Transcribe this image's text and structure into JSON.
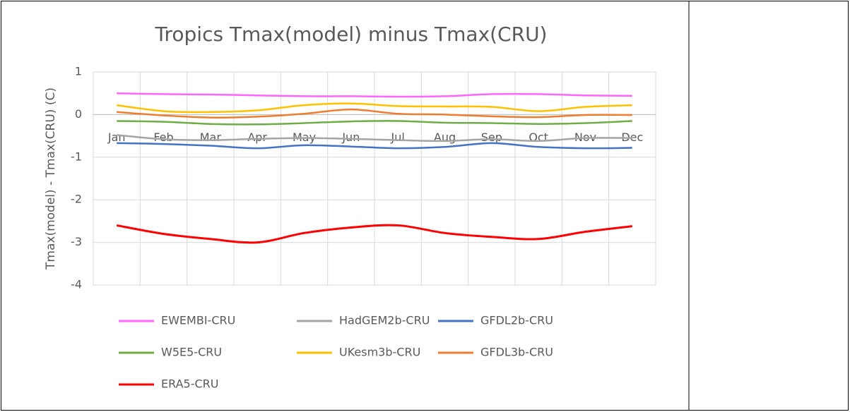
{
  "chart_data": {
    "type": "line",
    "title": "Tropics Tmax(model) minus Tmax(CRU)",
    "y_label": "Tmax(model) - Tmax(CRU) (C)",
    "categories": [
      "Jan",
      "Feb",
      "Mar",
      "Apr",
      "May",
      "Jun",
      "Jul",
      "Aug",
      "Sep",
      "Oct",
      "Nov",
      "Dec"
    ],
    "ylim": [
      -4,
      1
    ],
    "yticks": [
      -4,
      -3,
      -2,
      -1,
      0,
      1
    ],
    "grid": true,
    "smooth": true,
    "series": [
      {
        "name": "EWEMBI-CRU",
        "color": "#ff66ff",
        "values": [
          0.5,
          0.48,
          0.47,
          0.45,
          0.43,
          0.43,
          0.42,
          0.43,
          0.48,
          0.48,
          0.45,
          0.44
        ]
      },
      {
        "name": "HadGEM2b-CRU",
        "color": "#a5a5a5",
        "values": [
          -0.48,
          -0.58,
          -0.6,
          -0.57,
          -0.55,
          -0.57,
          -0.6,
          -0.62,
          -0.58,
          -0.62,
          -0.55,
          -0.55
        ]
      },
      {
        "name": "GFDL2b-CRU",
        "color": "#4472c4",
        "values": [
          -0.67,
          -0.69,
          -0.73,
          -0.79,
          -0.72,
          -0.75,
          -0.79,
          -0.76,
          -0.67,
          -0.76,
          -0.79,
          -0.78
        ]
      },
      {
        "name": "W5E5-CRU",
        "color": "#70ad47",
        "values": [
          -0.15,
          -0.17,
          -0.22,
          -0.23,
          -0.2,
          -0.16,
          -0.15,
          -0.19,
          -0.2,
          -0.22,
          -0.2,
          -0.15
        ]
      },
      {
        "name": "UKesm3b-CRU",
        "color": "#ffc000",
        "values": [
          0.22,
          0.08,
          0.06,
          0.1,
          0.22,
          0.26,
          0.2,
          0.19,
          0.18,
          0.08,
          0.18,
          0.22
        ]
      },
      {
        "name": "GFDL3b-CRU",
        "color": "#ed7d31",
        "values": [
          0.06,
          -0.02,
          -0.07,
          -0.05,
          0.02,
          0.12,
          0.02,
          0.0,
          -0.04,
          -0.06,
          -0.01,
          -0.01
        ]
      },
      {
        "name": "ERA5-CRU",
        "color": "#ff0000",
        "values": [
          -2.6,
          -2.8,
          -2.92,
          -3.0,
          -2.78,
          -2.65,
          -2.6,
          -2.78,
          -2.87,
          -2.92,
          -2.75,
          -2.62
        ]
      }
    ]
  }
}
